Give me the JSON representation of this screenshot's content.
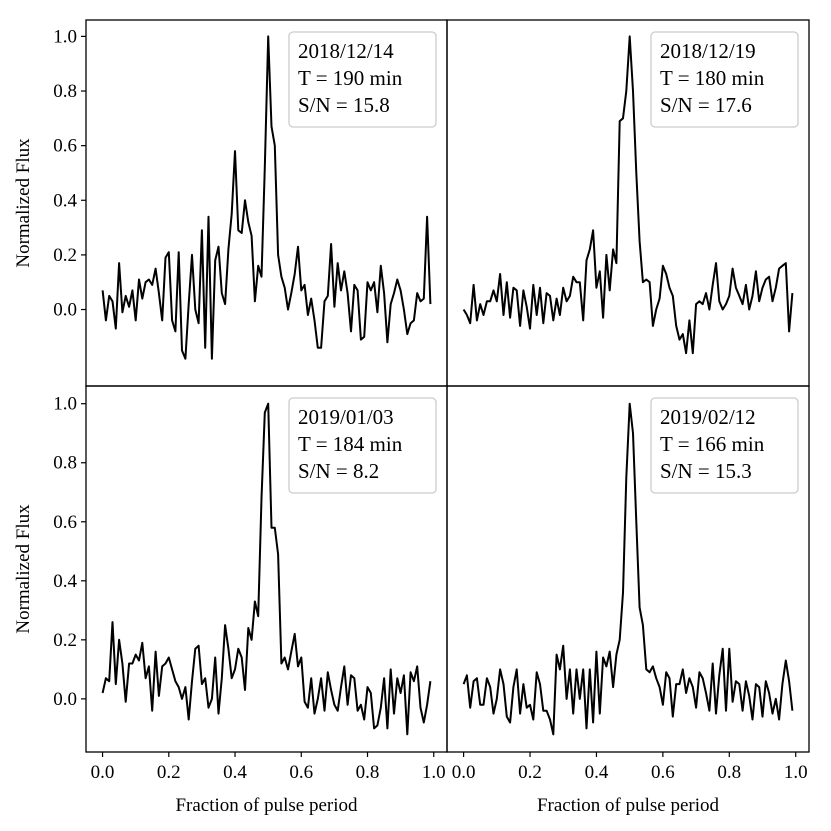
{
  "chart_data": [
    {
      "type": "line",
      "annotation": [
        "2018/12/14",
        "T = 190 min",
        "S/N = 15.8"
      ],
      "ylabel": "Normalized Flux",
      "xlim": [
        -0.05,
        1.04
      ],
      "ylim": [
        -0.28,
        1.06
      ],
      "yticks": [
        {
          "value": 0,
          "label": "0.0"
        },
        0.2,
        0.4,
        0.6,
        0.8,
        {
          "value": 1,
          "label": "1.0"
        }
      ],
      "color": "#000000",
      "x": [
        0.0,
        0.01,
        0.02,
        0.03,
        0.04,
        0.05,
        0.06,
        0.07,
        0.08,
        0.09,
        0.1,
        0.11,
        0.12,
        0.13,
        0.14,
        0.15,
        0.16,
        0.17,
        0.18,
        0.19,
        0.2,
        0.21,
        0.22,
        0.23,
        0.24,
        0.25,
        0.26,
        0.27,
        0.28,
        0.29,
        0.3,
        0.31,
        0.32,
        0.33,
        0.34,
        0.35,
        0.36,
        0.37,
        0.38,
        0.39,
        0.4,
        0.41,
        0.42,
        0.43,
        0.44,
        0.45,
        0.46,
        0.47,
        0.48,
        0.49,
        0.5,
        0.51,
        0.52,
        0.53,
        0.54,
        0.55,
        0.56,
        0.57,
        0.58,
        0.59,
        0.6,
        0.61,
        0.62,
        0.63,
        0.64,
        0.65,
        0.66,
        0.67,
        0.68,
        0.69,
        0.7,
        0.71,
        0.72,
        0.73,
        0.74,
        0.75,
        0.76,
        0.77,
        0.78,
        0.79,
        0.8,
        0.81,
        0.82,
        0.83,
        0.84,
        0.85,
        0.86,
        0.87,
        0.88,
        0.89,
        0.9,
        0.91,
        0.92,
        0.93,
        0.94,
        0.95,
        0.96,
        0.97,
        0.98,
        0.99
      ],
      "values": [
        0.07,
        -0.04,
        0.05,
        0.03,
        -0.07,
        0.17,
        -0.01,
        0.05,
        0.01,
        0.07,
        -0.04,
        0.11,
        0.04,
        0.1,
        0.11,
        0.09,
        0.15,
        0.06,
        -0.04,
        0.19,
        0.21,
        -0.04,
        -0.08,
        0.21,
        -0.15,
        -0.18,
        0.02,
        0.2,
        0.0,
        -0.05,
        0.29,
        -0.14,
        0.34,
        -0.18,
        0.18,
        0.23,
        0.06,
        0.02,
        0.22,
        0.35,
        0.58,
        0.29,
        0.28,
        0.4,
        0.32,
        0.27,
        0.03,
        0.16,
        0.12,
        0.52,
        1.0,
        0.67,
        0.6,
        0.2,
        0.12,
        0.08,
        0.0,
        0.06,
        0.13,
        0.23,
        0.07,
        0.09,
        -0.02,
        0.04,
        -0.04,
        -0.14,
        -0.14,
        0.03,
        0.05,
        0.24,
        0.01,
        0.17,
        0.07,
        0.14,
        0.06,
        -0.08,
        0.09,
        0.07,
        -0.11,
        -0.1,
        0.1,
        0.07,
        0.1,
        -0.01,
        0.16,
        0.06,
        -0.12,
        0.02,
        0.06,
        0.11,
        0.07,
        0.0,
        -0.09,
        -0.05,
        -0.04,
        0.06,
        0.03,
        0.04,
        0.34,
        0.02
      ]
    },
    {
      "type": "line",
      "annotation": [
        "2018/12/19",
        "T = 180 min",
        "S/N = 17.6"
      ],
      "xlim": [
        -0.05,
        1.04
      ],
      "ylim": [
        -0.28,
        1.06
      ],
      "color": "#000000",
      "x": [
        0.0,
        0.01,
        0.02,
        0.03,
        0.04,
        0.05,
        0.06,
        0.07,
        0.08,
        0.09,
        0.1,
        0.11,
        0.12,
        0.13,
        0.14,
        0.15,
        0.16,
        0.17,
        0.18,
        0.19,
        0.2,
        0.21,
        0.22,
        0.23,
        0.24,
        0.25,
        0.26,
        0.27,
        0.28,
        0.29,
        0.3,
        0.31,
        0.32,
        0.33,
        0.34,
        0.35,
        0.36,
        0.37,
        0.38,
        0.39,
        0.4,
        0.41,
        0.42,
        0.43,
        0.44,
        0.45,
        0.46,
        0.47,
        0.48,
        0.49,
        0.5,
        0.51,
        0.52,
        0.53,
        0.54,
        0.55,
        0.56,
        0.57,
        0.58,
        0.59,
        0.6,
        0.61,
        0.62,
        0.63,
        0.64,
        0.65,
        0.66,
        0.67,
        0.68,
        0.69,
        0.7,
        0.71,
        0.72,
        0.73,
        0.74,
        0.75,
        0.76,
        0.77,
        0.78,
        0.79,
        0.8,
        0.81,
        0.82,
        0.83,
        0.84,
        0.85,
        0.86,
        0.87,
        0.88,
        0.89,
        0.9,
        0.91,
        0.92,
        0.93,
        0.94,
        0.95,
        0.96,
        0.97,
        0.98,
        0.99
      ],
      "values": [
        0.0,
        -0.02,
        -0.05,
        0.09,
        -0.04,
        0.02,
        -0.02,
        0.03,
        0.03,
        0.07,
        0.03,
        0.13,
        -0.02,
        0.1,
        -0.03,
        0.08,
        0.07,
        -0.06,
        0.07,
        0.01,
        -0.07,
        0.09,
        -0.02,
        0.08,
        -0.05,
        0.06,
        0.05,
        -0.04,
        0.04,
        -0.02,
        0.08,
        0.03,
        0.05,
        0.12,
        0.1,
        0.1,
        -0.04,
        0.18,
        0.22,
        0.29,
        0.08,
        0.14,
        -0.03,
        0.2,
        0.07,
        0.22,
        0.17,
        0.69,
        0.7,
        0.8,
        1.0,
        0.8,
        0.5,
        0.25,
        0.1,
        0.11,
        0.1,
        -0.06,
        0.0,
        0.04,
        0.16,
        0.13,
        0.08,
        0.05,
        -0.06,
        -0.11,
        -0.09,
        -0.16,
        -0.04,
        -0.16,
        0.02,
        0.03,
        0.02,
        0.06,
        0.0,
        0.09,
        0.17,
        0.03,
        0.0,
        0.02,
        0.05,
        0.15,
        0.08,
        0.05,
        0.02,
        0.09,
        0.0,
        0.05,
        0.14,
        0.03,
        0.08,
        0.11,
        0.12,
        0.03,
        0.08,
        0.15,
        0.16,
        0.17,
        -0.08,
        0.06
      ]
    },
    {
      "type": "line",
      "annotation": [
        "2019/01/03",
        "T = 184 min",
        "S/N = 8.2"
      ],
      "ylabel": "Normalized Flux",
      "xlabel": "Fraction of pulse period",
      "xlim": [
        -0.05,
        1.04
      ],
      "ylim": [
        -0.18,
        1.06
      ],
      "yticks": [
        {
          "value": 0,
          "label": "0.0"
        },
        0.2,
        0.4,
        0.6,
        0.8,
        {
          "value": 1,
          "label": "1.0"
        }
      ],
      "xticks": [
        {
          "value": 0,
          "label": "0.0"
        },
        0.2,
        0.4,
        0.6,
        0.8,
        {
          "value": 1,
          "label": "1.0"
        }
      ],
      "color": "#000000",
      "x": [
        0.0,
        0.01,
        0.02,
        0.03,
        0.04,
        0.05,
        0.06,
        0.07,
        0.08,
        0.09,
        0.1,
        0.11,
        0.12,
        0.13,
        0.14,
        0.15,
        0.16,
        0.17,
        0.18,
        0.19,
        0.2,
        0.21,
        0.22,
        0.23,
        0.24,
        0.25,
        0.26,
        0.27,
        0.28,
        0.29,
        0.3,
        0.31,
        0.32,
        0.33,
        0.34,
        0.35,
        0.36,
        0.37,
        0.38,
        0.39,
        0.4,
        0.41,
        0.42,
        0.43,
        0.44,
        0.45,
        0.46,
        0.47,
        0.48,
        0.49,
        0.5,
        0.51,
        0.52,
        0.53,
        0.54,
        0.55,
        0.56,
        0.57,
        0.58,
        0.59,
        0.6,
        0.61,
        0.62,
        0.63,
        0.64,
        0.65,
        0.66,
        0.67,
        0.68,
        0.69,
        0.7,
        0.71,
        0.72,
        0.73,
        0.74,
        0.75,
        0.76,
        0.77,
        0.78,
        0.79,
        0.8,
        0.81,
        0.82,
        0.83,
        0.84,
        0.85,
        0.86,
        0.87,
        0.88,
        0.89,
        0.9,
        0.91,
        0.92,
        0.93,
        0.94,
        0.95,
        0.96,
        0.97,
        0.98,
        0.99
      ],
      "values": [
        0.02,
        0.07,
        0.06,
        0.26,
        0.05,
        0.2,
        0.12,
        -0.01,
        0.12,
        0.12,
        0.15,
        0.13,
        0.19,
        0.07,
        0.11,
        -0.04,
        0.16,
        0.01,
        0.11,
        0.12,
        0.14,
        0.1,
        0.06,
        0.04,
        0.0,
        0.04,
        -0.07,
        0.06,
        0.17,
        0.18,
        0.05,
        0.07,
        -0.03,
        0.0,
        0.14,
        -0.05,
        0.07,
        0.25,
        0.17,
        0.07,
        0.1,
        0.17,
        0.14,
        0.03,
        0.24,
        0.2,
        0.33,
        0.28,
        0.68,
        0.97,
        1.0,
        0.58,
        0.58,
        0.49,
        0.12,
        0.14,
        0.1,
        0.16,
        0.22,
        0.11,
        0.14,
        -0.01,
        -0.03,
        0.07,
        -0.05,
        0.0,
        0.07,
        -0.04,
        0.09,
        0.03,
        -0.02,
        -0.04,
        0.04,
        0.11,
        -0.02,
        0.08,
        0.07,
        -0.04,
        -0.02,
        -0.07,
        0.04,
        0.02,
        -0.1,
        -0.09,
        -0.03,
        0.07,
        -0.1,
        0.1,
        -0.05,
        0.07,
        0.02,
        0.08,
        -0.12,
        0.09,
        0.06,
        0.11,
        -0.03,
        -0.08,
        -0.02,
        0.06
      ]
    },
    {
      "type": "line",
      "annotation": [
        "2019/02/12",
        "T = 166 min",
        "S/N = 15.3"
      ],
      "xlabel": "Fraction of pulse period",
      "xlim": [
        -0.05,
        1.04
      ],
      "ylim": [
        -0.18,
        1.06
      ],
      "xticks": [
        {
          "value": 0,
          "label": "0.0"
        },
        0.2,
        0.4,
        0.6,
        0.8,
        {
          "value": 1,
          "label": "1.0"
        }
      ],
      "color": "#000000",
      "x": [
        0.0,
        0.01,
        0.02,
        0.03,
        0.04,
        0.05,
        0.06,
        0.07,
        0.08,
        0.09,
        0.1,
        0.11,
        0.12,
        0.13,
        0.14,
        0.15,
        0.16,
        0.17,
        0.18,
        0.19,
        0.2,
        0.21,
        0.22,
        0.23,
        0.24,
        0.25,
        0.26,
        0.27,
        0.28,
        0.29,
        0.3,
        0.31,
        0.32,
        0.33,
        0.34,
        0.35,
        0.36,
        0.37,
        0.38,
        0.39,
        0.4,
        0.41,
        0.42,
        0.43,
        0.44,
        0.45,
        0.46,
        0.47,
        0.48,
        0.49,
        0.5,
        0.51,
        0.52,
        0.53,
        0.54,
        0.55,
        0.56,
        0.57,
        0.58,
        0.59,
        0.6,
        0.61,
        0.62,
        0.63,
        0.64,
        0.65,
        0.66,
        0.67,
        0.68,
        0.69,
        0.7,
        0.71,
        0.72,
        0.73,
        0.74,
        0.75,
        0.76,
        0.77,
        0.78,
        0.79,
        0.8,
        0.81,
        0.82,
        0.83,
        0.84,
        0.85,
        0.86,
        0.87,
        0.88,
        0.89,
        0.9,
        0.91,
        0.92,
        0.93,
        0.94,
        0.95,
        0.96,
        0.97,
        0.98,
        0.99
      ],
      "values": [
        0.05,
        0.08,
        -0.03,
        0.06,
        0.07,
        -0.02,
        -0.02,
        0.07,
        0.04,
        -0.05,
        0.0,
        0.1,
        0.05,
        -0.06,
        -0.08,
        0.04,
        0.1,
        -0.05,
        0.05,
        -0.03,
        -0.02,
        -0.07,
        0.09,
        0.05,
        -0.04,
        -0.04,
        -0.07,
        -0.12,
        0.15,
        0.1,
        0.18,
        0.0,
        0.1,
        -0.05,
        0.1,
        0.0,
        0.1,
        -0.1,
        0.1,
        -0.08,
        0.16,
        -0.05,
        0.14,
        0.11,
        0.16,
        0.04,
        0.15,
        0.2,
        0.36,
        0.75,
        1.0,
        0.9,
        0.6,
        0.31,
        0.25,
        0.1,
        0.09,
        0.11,
        0.07,
        0.04,
        -0.02,
        0.09,
        0.07,
        -0.06,
        0.05,
        0.05,
        0.1,
        0.02,
        0.07,
        0.04,
        -0.03,
        0.09,
        0.07,
        0.02,
        -0.04,
        0.12,
        -0.05,
        0.08,
        0.17,
        -0.04,
        0.17,
        -0.01,
        0.06,
        0.05,
        -0.04,
        0.06,
        0.01,
        -0.07,
        0.05,
        0.04,
        -0.06,
        0.06,
        0.02,
        -0.05,
        0.0,
        -0.07,
        0.05,
        0.13,
        0.06,
        -0.04
      ]
    }
  ]
}
